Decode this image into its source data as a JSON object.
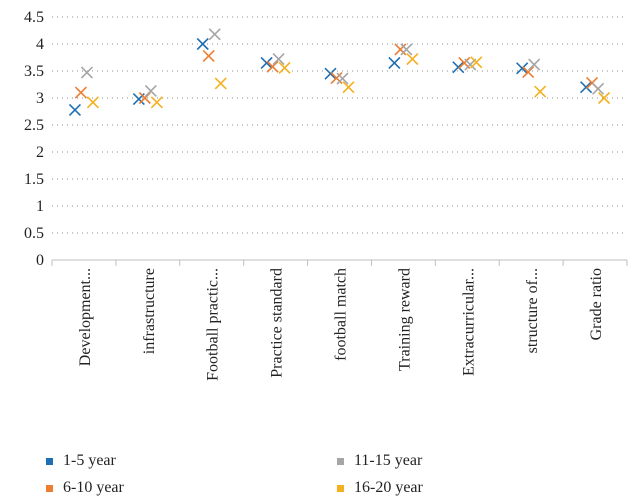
{
  "chart_data": {
    "type": "scatter",
    "title": "",
    "xlabel": "",
    "ylabel": "",
    "ylim": [
      0,
      4.5
    ],
    "yticks": [
      "0",
      "0.5",
      "1",
      "1.5",
      "2",
      "2.5",
      "3",
      "3.5",
      "4",
      "4.5"
    ],
    "grid": "horizontal-dotted",
    "legend_position": "bottom",
    "categories": [
      "Development...",
      "infrastructure",
      "Football practic...",
      "Practice standard",
      "football match",
      "Training reward",
      "Extracurricular...",
      "structure of...",
      "Grade ratio"
    ],
    "series": [
      {
        "name": "1-5 year",
        "color": "#1f6fb4",
        "values": [
          2.78,
          2.98,
          4.0,
          3.65,
          3.45,
          3.65,
          3.57,
          3.55,
          3.2
        ]
      },
      {
        "name": "6-10 year",
        "color": "#ed7d31",
        "values": [
          3.1,
          3.0,
          3.78,
          3.58,
          3.37,
          3.9,
          3.65,
          3.48,
          3.28
        ]
      },
      {
        "name": "11-15 year",
        "color": "#a5a5a5",
        "values": [
          3.47,
          3.13,
          4.18,
          3.72,
          3.36,
          3.9,
          3.62,
          3.62,
          3.17
        ]
      },
      {
        "name": "16-20 year",
        "color": "#f5b01e",
        "values": [
          2.92,
          2.92,
          3.27,
          3.56,
          3.2,
          3.72,
          3.66,
          3.12,
          3.0
        ]
      }
    ]
  }
}
